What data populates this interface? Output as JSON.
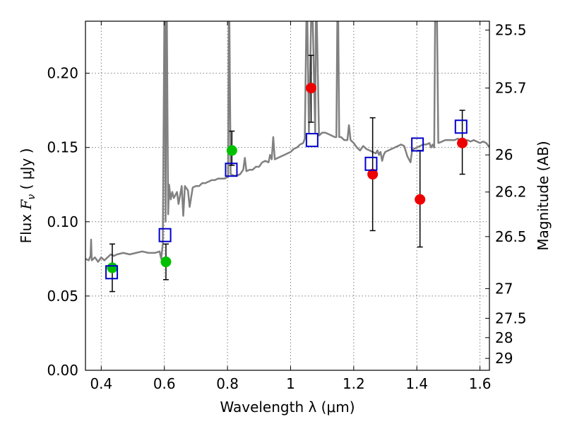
{
  "chart_data": {
    "type": "scatter",
    "xlabel": "Wavelength  λ (μm)",
    "ylabel": "Flux  Fν  ( μJy )",
    "ylabel_parts": {
      "prefix": "Flux ",
      "symbol": "F",
      "subscript": "ν",
      "suffix": "  ( μJy )"
    },
    "y2label": "Magnitude (AB)",
    "xlim": [
      0.35,
      1.63
    ],
    "ylim": [
      0.0,
      0.235
    ],
    "grid": true,
    "x_ticks": [
      0.4,
      0.6,
      0.8,
      1.0,
      1.2,
      1.4,
      1.6
    ],
    "x_tick_labels": [
      "0.4",
      "0.6",
      "0.8",
      "1",
      "1.2",
      "1.4",
      "1.6"
    ],
    "y_ticks": [
      0.0,
      0.05,
      0.1,
      0.15,
      0.2
    ],
    "y_tick_labels": [
      "0.00",
      "0.05",
      "0.10",
      "0.15",
      "0.20"
    ],
    "y2_ticks": [
      {
        "flux": 0.229,
        "label": "25.5"
      },
      {
        "flux": 0.19,
        "label": "25.7"
      },
      {
        "flux": 0.145,
        "label": "26"
      },
      {
        "flux": 0.12,
        "label": "26.2"
      },
      {
        "flux": 0.09,
        "label": "26.5"
      },
      {
        "flux": 0.055,
        "label": "27"
      },
      {
        "flux": 0.035,
        "label": "27.5"
      },
      {
        "flux": 0.022,
        "label": "28"
      },
      {
        "flux": 0.008,
        "label": "29"
      }
    ],
    "colors": {
      "spectrum": "#808080",
      "green": "#00c000",
      "red": "#ee0000",
      "model": "#0000cc",
      "errorbar": "#000000",
      "grid": "#7f7f7f"
    },
    "spectrum": {
      "name": "model spectrum",
      "points": [
        [
          0.35,
          0.075
        ],
        [
          0.36,
          0.074
        ],
        [
          0.366,
          0.077
        ],
        [
          0.368,
          0.088
        ],
        [
          0.37,
          0.074
        ],
        [
          0.38,
          0.076
        ],
        [
          0.39,
          0.073
        ],
        [
          0.4,
          0.076
        ],
        [
          0.41,
          0.074
        ],
        [
          0.42,
          0.076
        ],
        [
          0.43,
          0.078
        ],
        [
          0.44,
          0.077
        ],
        [
          0.45,
          0.078
        ],
        [
          0.47,
          0.079
        ],
        [
          0.49,
          0.078
        ],
        [
          0.51,
          0.079
        ],
        [
          0.53,
          0.08
        ],
        [
          0.55,
          0.079
        ],
        [
          0.57,
          0.079
        ],
        [
          0.585,
          0.08
        ],
        [
          0.59,
          0.075
        ],
        [
          0.595,
          0.085
        ],
        [
          0.6,
          0.235
        ],
        [
          0.602,
          0.235
        ],
        [
          0.604,
          0.1
        ],
        [
          0.606,
          0.235
        ],
        [
          0.608,
          0.235
        ],
        [
          0.612,
          0.105
        ],
        [
          0.615,
          0.125
        ],
        [
          0.62,
          0.115
        ],
        [
          0.625,
          0.12
        ],
        [
          0.63,
          0.116
        ],
        [
          0.64,
          0.12
        ],
        [
          0.645,
          0.112
        ],
        [
          0.65,
          0.118
        ],
        [
          0.655,
          0.124
        ],
        [
          0.66,
          0.104
        ],
        [
          0.665,
          0.124
        ],
        [
          0.675,
          0.121
        ],
        [
          0.68,
          0.11
        ],
        [
          0.69,
          0.123
        ],
        [
          0.7,
          0.124
        ],
        [
          0.71,
          0.124
        ],
        [
          0.72,
          0.126
        ],
        [
          0.73,
          0.126
        ],
        [
          0.74,
          0.127
        ],
        [
          0.75,
          0.128
        ],
        [
          0.76,
          0.128
        ],
        [
          0.77,
          0.129
        ],
        [
          0.78,
          0.129
        ],
        [
          0.79,
          0.129
        ],
        [
          0.8,
          0.13
        ],
        [
          0.802,
          0.13
        ],
        [
          0.804,
          0.235
        ],
        [
          0.806,
          0.235
        ],
        [
          0.81,
          0.132
        ],
        [
          0.82,
          0.131
        ],
        [
          0.83,
          0.131
        ],
        [
          0.84,
          0.132
        ],
        [
          0.85,
          0.135
        ],
        [
          0.855,
          0.143
        ],
        [
          0.86,
          0.134
        ],
        [
          0.87,
          0.135
        ],
        [
          0.88,
          0.135
        ],
        [
          0.89,
          0.137
        ],
        [
          0.9,
          0.137
        ],
        [
          0.91,
          0.14
        ],
        [
          0.92,
          0.141
        ],
        [
          0.93,
          0.14
        ],
        [
          0.935,
          0.145
        ],
        [
          0.94,
          0.142
        ],
        [
          0.945,
          0.157
        ],
        [
          0.95,
          0.142
        ],
        [
          0.96,
          0.143
        ],
        [
          0.97,
          0.144
        ],
        [
          0.98,
          0.145
        ],
        [
          0.99,
          0.146
        ],
        [
          1.0,
          0.147
        ],
        [
          1.01,
          0.149
        ],
        [
          1.02,
          0.15
        ],
        [
          1.03,
          0.152
        ],
        [
          1.04,
          0.153
        ],
        [
          1.045,
          0.156
        ],
        [
          1.05,
          0.235
        ],
        [
          1.053,
          0.235
        ],
        [
          1.058,
          0.16
        ],
        [
          1.065,
          0.235
        ],
        [
          1.07,
          0.235
        ],
        [
          1.078,
          0.16
        ],
        [
          1.08,
          0.235
        ],
        [
          1.083,
          0.235
        ],
        [
          1.09,
          0.158
        ],
        [
          1.1,
          0.16
        ],
        [
          1.11,
          0.16
        ],
        [
          1.12,
          0.159
        ],
        [
          1.13,
          0.158
        ],
        [
          1.14,
          0.157
        ],
        [
          1.145,
          0.157
        ],
        [
          1.148,
          0.235
        ],
        [
          1.151,
          0.235
        ],
        [
          1.154,
          0.157
        ],
        [
          1.16,
          0.157
        ],
        [
          1.17,
          0.155
        ],
        [
          1.18,
          0.155
        ],
        [
          1.185,
          0.165
        ],
        [
          1.19,
          0.155
        ],
        [
          1.2,
          0.153
        ],
        [
          1.21,
          0.15
        ],
        [
          1.22,
          0.148
        ],
        [
          1.23,
          0.151
        ],
        [
          1.24,
          0.149
        ],
        [
          1.25,
          0.148
        ],
        [
          1.26,
          0.147
        ],
        [
          1.27,
          0.146
        ],
        [
          1.275,
          0.148
        ],
        [
          1.28,
          0.145
        ],
        [
          1.285,
          0.147
        ],
        [
          1.29,
          0.141
        ],
        [
          1.295,
          0.145
        ],
        [
          1.3,
          0.147
        ],
        [
          1.31,
          0.148
        ],
        [
          1.32,
          0.149
        ],
        [
          1.33,
          0.15
        ],
        [
          1.34,
          0.151
        ],
        [
          1.35,
          0.152
        ],
        [
          1.36,
          0.151
        ],
        [
          1.37,
          0.144
        ],
        [
          1.38,
          0.14
        ],
        [
          1.385,
          0.148
        ],
        [
          1.39,
          0.149
        ],
        [
          1.4,
          0.15
        ],
        [
          1.41,
          0.151
        ],
        [
          1.42,
          0.152
        ],
        [
          1.43,
          0.152
        ],
        [
          1.44,
          0.153
        ],
        [
          1.445,
          0.15
        ],
        [
          1.45,
          0.152
        ],
        [
          1.455,
          0.15
        ],
        [
          1.458,
          0.235
        ],
        [
          1.464,
          0.235
        ],
        [
          1.468,
          0.153
        ],
        [
          1.48,
          0.154
        ],
        [
          1.49,
          0.155
        ],
        [
          1.5,
          0.155
        ],
        [
          1.51,
          0.155
        ],
        [
          1.52,
          0.155
        ],
        [
          1.53,
          0.156
        ],
        [
          1.54,
          0.155
        ],
        [
          1.55,
          0.154
        ],
        [
          1.56,
          0.155
        ],
        [
          1.57,
          0.154
        ],
        [
          1.58,
          0.155
        ],
        [
          1.59,
          0.154
        ],
        [
          1.6,
          0.153
        ],
        [
          1.61,
          0.154
        ],
        [
          1.62,
          0.153
        ],
        [
          1.63,
          0.15
        ]
      ]
    },
    "observed": [
      {
        "x": 0.435,
        "y": 0.069,
        "yerr_low": 0.053,
        "yerr_high": 0.085,
        "color": "green"
      },
      {
        "x": 0.605,
        "y": 0.073,
        "yerr_low": 0.061,
        "yerr_high": 0.085,
        "color": "green"
      },
      {
        "x": 0.814,
        "y": 0.148,
        "yerr_low": 0.138,
        "yerr_high": 0.161,
        "color": "green"
      },
      {
        "x": 1.065,
        "y": 0.19,
        "yerr_low": 0.167,
        "yerr_high": 0.212,
        "color": "red"
      },
      {
        "x": 1.26,
        "y": 0.132,
        "yerr_low": 0.094,
        "yerr_high": 0.17,
        "color": "red"
      },
      {
        "x": 1.41,
        "y": 0.115,
        "yerr_low": 0.083,
        "yerr_high": 0.148,
        "color": "red"
      },
      {
        "x": 1.544,
        "y": 0.153,
        "yerr_low": 0.132,
        "yerr_high": 0.175,
        "color": "red"
      }
    ],
    "model_points": [
      {
        "x": 0.433,
        "y": 0.066
      },
      {
        "x": 0.602,
        "y": 0.091
      },
      {
        "x": 0.812,
        "y": 0.135
      },
      {
        "x": 1.068,
        "y": 0.155
      },
      {
        "x": 1.255,
        "y": 0.139
      },
      {
        "x": 1.402,
        "y": 0.152
      },
      {
        "x": 1.54,
        "y": 0.164
      }
    ]
  }
}
